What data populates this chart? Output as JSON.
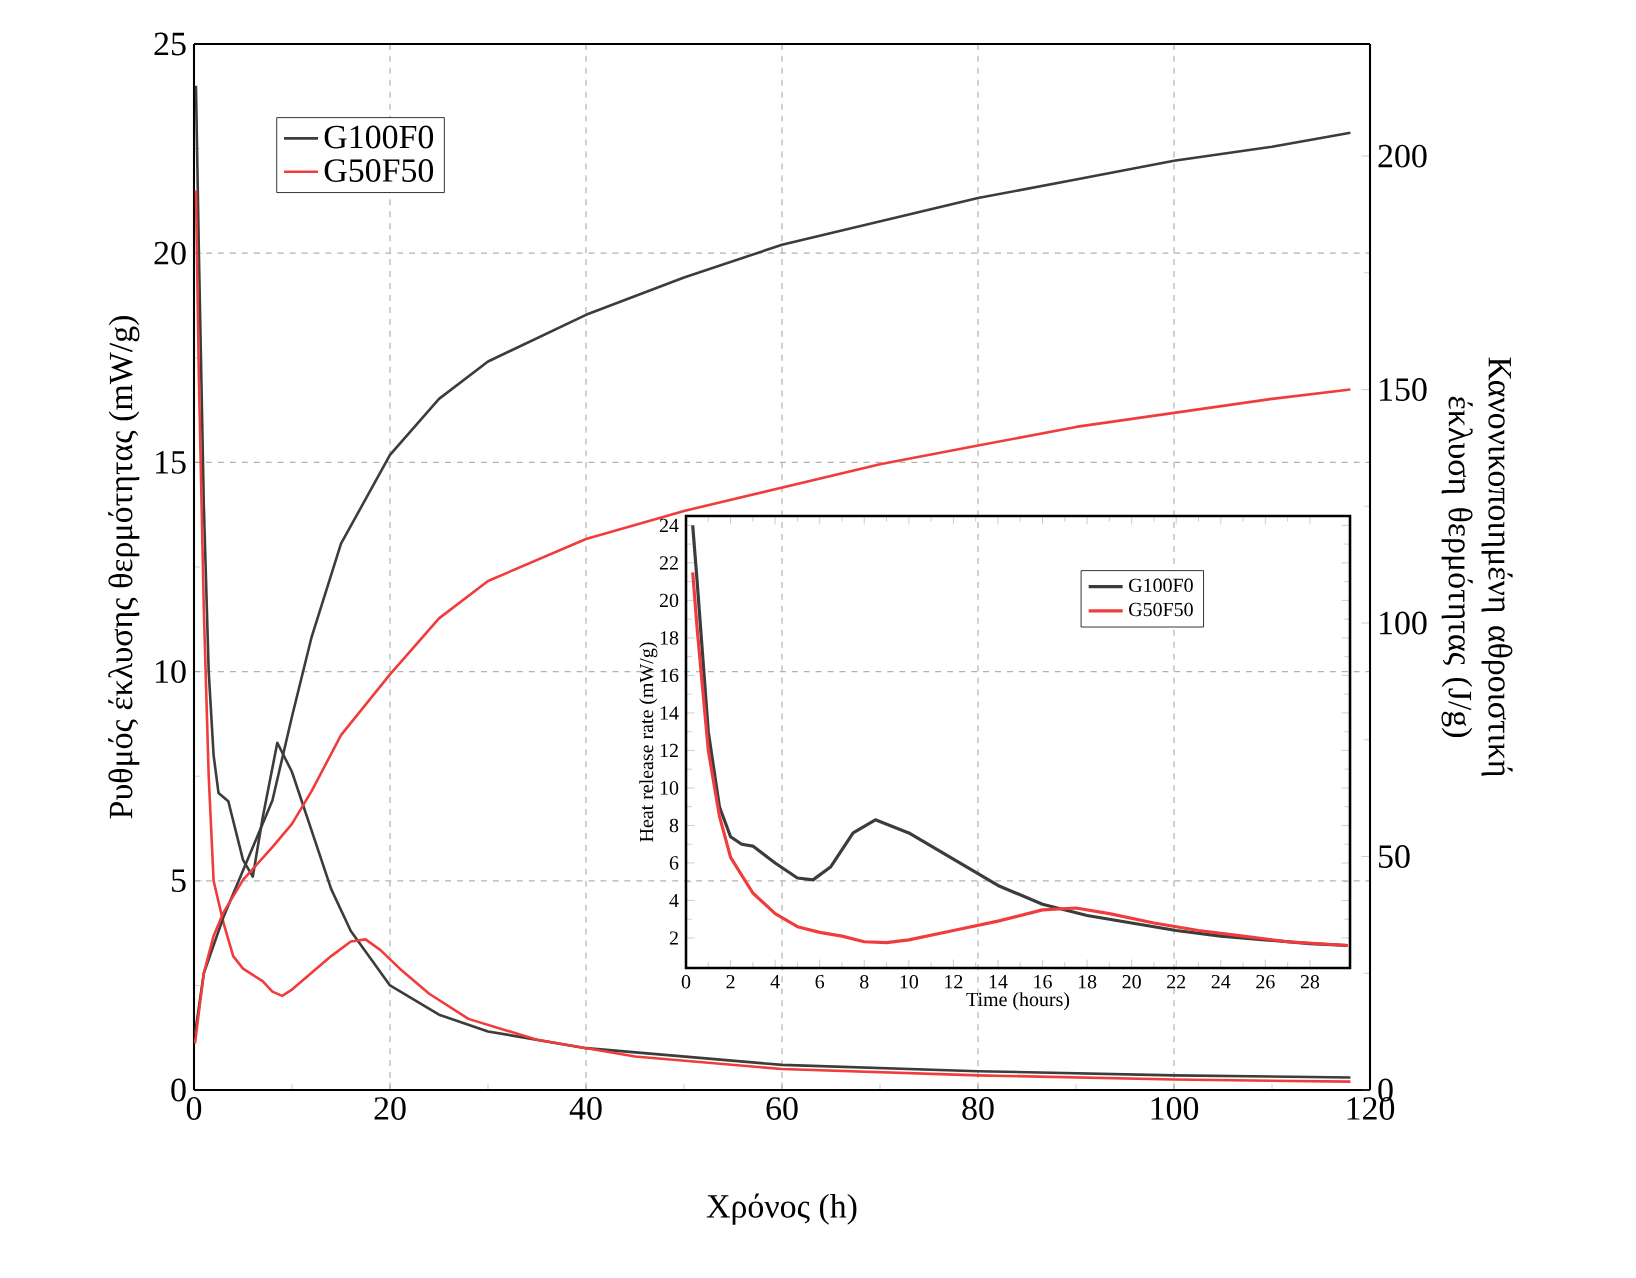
{
  "chart_data": [
    {
      "type": "line",
      "xlabel": "Χρόνος (h)",
      "ylabel": "Ρυθμός έκλυσης θερμότητας (mW/g)",
      "y2label": "Κανονικοποιημένη αθροιστική έκλυση θερμότητας (J/g)",
      "xlim": [
        0,
        120
      ],
      "ylim": [
        0,
        25
      ],
      "y2lim": [
        0,
        224
      ],
      "xticks": [
        0,
        20,
        40,
        60,
        80,
        100,
        120
      ],
      "yticks": [
        0,
        5,
        10,
        15,
        20,
        25
      ],
      "y2ticks": [
        0,
        50,
        100,
        150,
        200
      ],
      "grid": true,
      "legend": "top left",
      "series": [
        {
          "name": "G100F0",
          "color": "#3c3c3c",
          "x": [
            0.2,
            0.5,
            1,
            1.5,
            2,
            2.5,
            3.5,
            5,
            6,
            7,
            8.5,
            10,
            12,
            14,
            16,
            20,
            25,
            30,
            40,
            50,
            60,
            80,
            100,
            118
          ],
          "values": [
            24,
            20,
            14,
            10,
            8,
            7.1,
            6.9,
            5.5,
            5.1,
            6.5,
            8.3,
            7.6,
            6.2,
            4.8,
            3.8,
            2.5,
            1.8,
            1.4,
            1.0,
            0.8,
            0.6,
            0.45,
            0.35,
            0.3
          ]
        },
        {
          "name": "G50F50",
          "color": "#f03c3c",
          "x": [
            0.2,
            0.5,
            1,
            1.5,
            2,
            3,
            4,
            5,
            6,
            7,
            8,
            9,
            10,
            12,
            14,
            16,
            17.5,
            19,
            21,
            24,
            28,
            35,
            45,
            60,
            80,
            100,
            118
          ],
          "values": [
            21.5,
            17,
            11.5,
            7.5,
            5,
            4,
            3.2,
            2.9,
            2.75,
            2.6,
            2.35,
            2.25,
            2.4,
            2.8,
            3.2,
            3.55,
            3.6,
            3.35,
            2.9,
            2.3,
            1.7,
            1.2,
            0.8,
            0.5,
            0.35,
            0.25,
            0.2
          ]
        },
        {
          "color": "#3c3c3c",
          "axis": "y2",
          "x": [
            0.1,
            1,
            3,
            5,
            8,
            10,
            12,
            15,
            20,
            25,
            30,
            40,
            50,
            60,
            70,
            80,
            90,
            100,
            110,
            118
          ],
          "values": [
            12,
            25,
            37,
            47,
            62,
            80,
            97,
            117,
            136,
            148,
            156,
            166,
            174,
            181,
            186,
            191,
            195,
            199,
            202,
            205
          ]
        },
        {
          "color": "#f03c3c",
          "axis": "y2",
          "x": [
            0.1,
            1,
            2,
            3,
            5,
            8,
            10,
            12,
            15,
            20,
            25,
            30,
            40,
            50,
            60,
            70,
            80,
            90,
            100,
            110,
            118
          ],
          "values": [
            10,
            25,
            33,
            38,
            45,
            52,
            57,
            64,
            76,
            89,
            101,
            109,
            118,
            124,
            129,
            134,
            138,
            142,
            145,
            148,
            150
          ]
        }
      ]
    },
    {
      "type": "line",
      "xlabel": "Time (hours)",
      "ylabel": "Heat release rate (mW/g)",
      "xlim": [
        0,
        29.8
      ],
      "ylim": [
        0.4,
        24.5
      ],
      "xticks": [
        0,
        2,
        4,
        6,
        8,
        10,
        12,
        14,
        16,
        18,
        20,
        22,
        24,
        26,
        28
      ],
      "yticks": [
        2,
        4,
        6,
        8,
        10,
        12,
        14,
        16,
        18,
        20,
        22,
        24
      ],
      "legend": "top right",
      "series": [
        {
          "name": "G100F0",
          "color": "#3c3c3c",
          "x": [
            0.3,
            0.5,
            1,
            1.5,
            2,
            2.5,
            3,
            4,
            5,
            5.7,
            6.5,
            7.5,
            8.5,
            10,
            12,
            14,
            16,
            18,
            20,
            22,
            24,
            26,
            28,
            29.7
          ],
          "values": [
            24,
            21,
            13,
            9,
            7.4,
            7.0,
            6.9,
            6,
            5.2,
            5.1,
            5.8,
            7.6,
            8.3,
            7.6,
            6.2,
            4.8,
            3.8,
            3.2,
            2.8,
            2.4,
            2.1,
            1.9,
            1.7,
            1.6
          ]
        },
        {
          "name": "G50F50",
          "color": "#f03c3c",
          "x": [
            0.3,
            0.5,
            1,
            1.5,
            2,
            3,
            4,
            5,
            6,
            7,
            8,
            9,
            10,
            12,
            14,
            16,
            17.5,
            19,
            21,
            23,
            25,
            27,
            29.7
          ],
          "values": [
            21.5,
            18.5,
            12,
            8.5,
            6.3,
            4.4,
            3.3,
            2.6,
            2.3,
            2.1,
            1.8,
            1.75,
            1.9,
            2.4,
            2.9,
            3.5,
            3.6,
            3.3,
            2.8,
            2.4,
            2.1,
            1.8,
            1.6
          ]
        }
      ]
    }
  ]
}
